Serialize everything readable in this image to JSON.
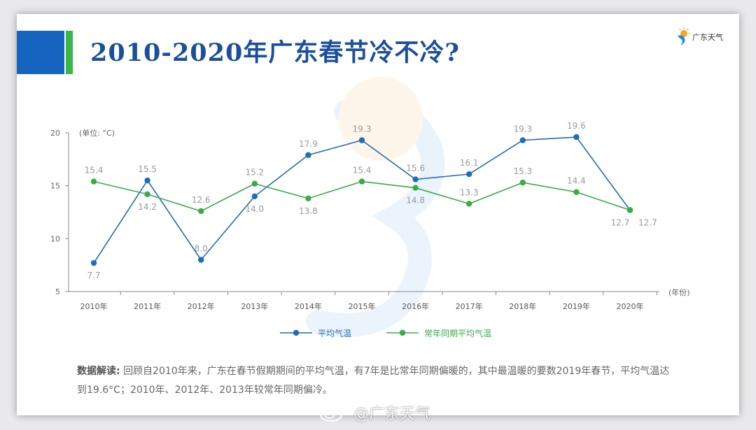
{
  "title": "2010-2020年广东春节冷不冷?",
  "logo": {
    "text": "广东天气",
    "icon": "guangdong-weather-logo-icon"
  },
  "chart_data": {
    "type": "line",
    "unit_label": "(单位: °C)",
    "x_axis_label": "(年份)",
    "categories": [
      "2010年",
      "2011年",
      "2012年",
      "2013年",
      "2014年",
      "2015年",
      "2016年",
      "2017年",
      "2018年",
      "2019年",
      "2020年"
    ],
    "ylim": [
      5,
      20
    ],
    "yticks": [
      5,
      10,
      15,
      20
    ],
    "grid": false,
    "legend_position": "bottom-center",
    "series": [
      {
        "name": "平均气温",
        "color": "#1f6db5",
        "values": [
          7.7,
          15.5,
          8.0,
          14.0,
          17.9,
          19.3,
          15.6,
          16.1,
          19.3,
          19.6,
          12.7
        ],
        "labels": [
          "7.7",
          "15.5",
          "8.0",
          "14.0",
          "17.9",
          "19.3",
          "15.6",
          "16.1",
          "19.3",
          "19.6",
          "12.7"
        ]
      },
      {
        "name": "常年同期平均气温",
        "color": "#3aab4a",
        "values": [
          15.4,
          14.2,
          12.6,
          15.2,
          13.8,
          15.4,
          14.8,
          13.3,
          15.3,
          14.4,
          12.7
        ],
        "labels": [
          "15.4",
          "14.2",
          "12.6",
          "15.2",
          "13.8",
          "15.4",
          "14.8",
          "13.3",
          "15.3",
          "14.4",
          "12.7"
        ]
      }
    ]
  },
  "note": {
    "label": "数据解读:",
    "text": "回顾自2010年来，广东在春节假期期间的平均气温，有7年是比常年同期偏暖的，其中最温暖的要数2019年春节，平均气温达到19.6°C；2010年、2012年、2013年较常年同期偏冷。"
  },
  "watermark": {
    "text": "@广东天气",
    "icon": "weibo-icon"
  }
}
